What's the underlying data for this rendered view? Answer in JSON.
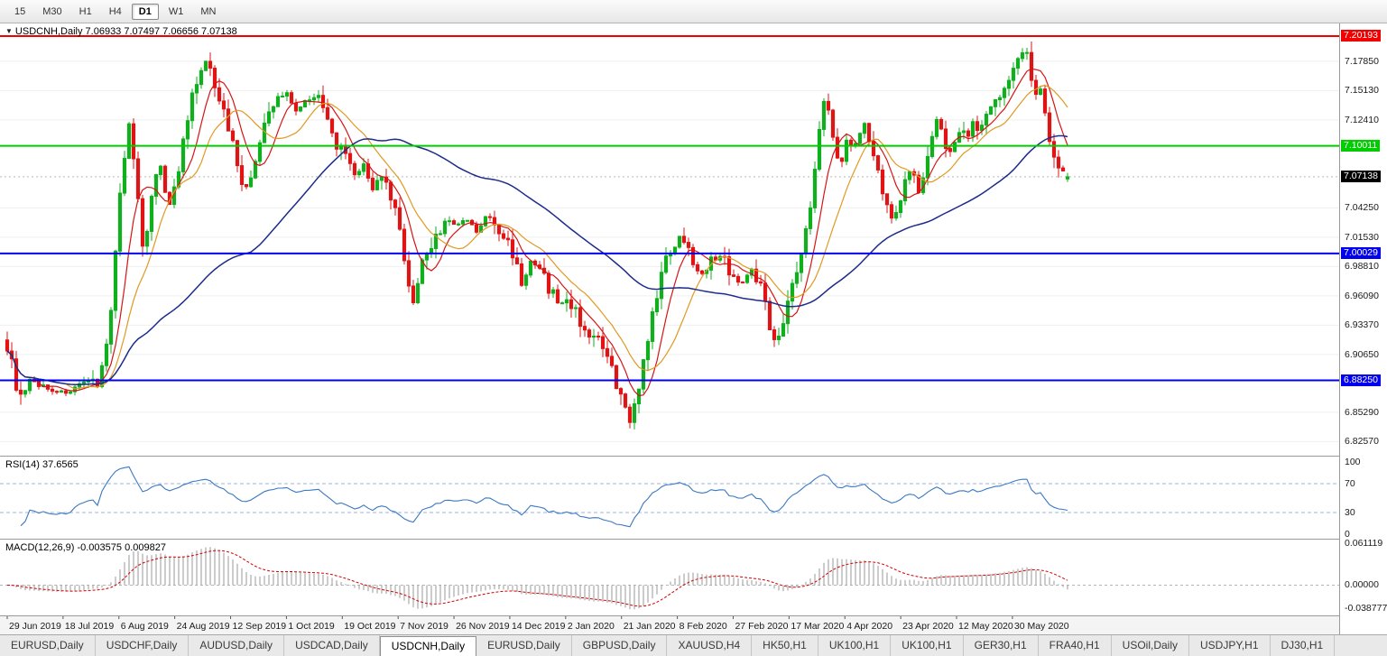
{
  "toolbar": {
    "timeframes": [
      "15",
      "M30",
      "H1",
      "H4",
      "D1",
      "W1",
      "MN"
    ],
    "active_index": 4
  },
  "chart_data": {
    "main": {
      "type": "candlestick",
      "symbol": "USDCNH",
      "timeframe": "Daily",
      "info_text": "USDCNH,Daily 7.06933 7.07497 7.06656 7.07138",
      "current": {
        "open": 7.06933,
        "high": 7.07497,
        "low": 7.06656,
        "close": 7.07138
      },
      "up_color": "#0faf1e",
      "down_color": "#e01414",
      "price_axis": {
        "min": 6.8118,
        "max": 7.2136,
        "labels": [
          {
            "text": "7.17850",
            "price": 7.1785
          },
          {
            "text": "7.15130",
            "price": 7.1513
          },
          {
            "text": "7.12410",
            "price": 7.1241
          },
          {
            "text": "7.04250",
            "price": 7.0425
          },
          {
            "text": "7.01530",
            "price": 7.0153
          },
          {
            "text": "6.98810",
            "price": 6.9881
          },
          {
            "text": "6.96090",
            "price": 6.9609
          },
          {
            "text": "6.93370",
            "price": 6.9337
          },
          {
            "text": "6.90650",
            "price": 6.9065
          },
          {
            "text": "6.85290",
            "price": 6.8529
          },
          {
            "text": "6.82570",
            "price": 6.8257
          }
        ]
      },
      "hlines": [
        {
          "price": 7.20193,
          "label": "7.20193",
          "color": "#f20000",
          "name": "resistance-line"
        },
        {
          "price": 7.10011,
          "label": "7.10011",
          "color": "#00cc00",
          "name": "support-green-line"
        },
        {
          "price": 7.00029,
          "label": "7.00029",
          "color": "#0000ee",
          "name": "level-7000-line"
        },
        {
          "price": 6.8825,
          "label": "6.88250",
          "color": "#0000ee",
          "name": "level-6882-line"
        }
      ],
      "current_price_tag": {
        "price": 7.07138,
        "text": "7.07138",
        "color": "#000000"
      },
      "moving_averages": [
        {
          "period": 7,
          "color": "#d51515"
        },
        {
          "period": 14,
          "color": "#e09a22"
        },
        {
          "period": 55,
          "color": "#1c2b8c"
        }
      ],
      "close_path_anchors": [
        [
          0.0,
          6.916
        ],
        [
          0.006,
          6.888
        ],
        [
          0.013,
          6.864
        ],
        [
          0.022,
          6.882
        ],
        [
          0.035,
          6.876
        ],
        [
          0.053,
          6.871
        ],
        [
          0.07,
          6.877
        ],
        [
          0.085,
          6.883
        ],
        [
          0.096,
          6.925
        ],
        [
          0.104,
          7.04
        ],
        [
          0.11,
          7.088
        ],
        [
          0.115,
          7.122
        ],
        [
          0.121,
          7.06
        ],
        [
          0.128,
          7.006
        ],
        [
          0.136,
          7.052
        ],
        [
          0.143,
          7.09
        ],
        [
          0.151,
          7.042
        ],
        [
          0.158,
          7.062
        ],
        [
          0.166,
          7.105
        ],
        [
          0.174,
          7.146
        ],
        [
          0.182,
          7.168
        ],
        [
          0.189,
          7.182
        ],
        [
          0.196,
          7.156
        ],
        [
          0.204,
          7.128
        ],
        [
          0.211,
          7.108
        ],
        [
          0.219,
          7.072
        ],
        [
          0.226,
          7.058
        ],
        [
          0.234,
          7.092
        ],
        [
          0.243,
          7.122
        ],
        [
          0.252,
          7.142
        ],
        [
          0.263,
          7.15
        ],
        [
          0.272,
          7.132
        ],
        [
          0.282,
          7.144
        ],
        [
          0.291,
          7.15
        ],
        [
          0.3,
          7.122
        ],
        [
          0.308,
          7.104
        ],
        [
          0.316,
          7.092
        ],
        [
          0.325,
          7.072
        ],
        [
          0.334,
          7.082
        ],
        [
          0.344,
          7.062
        ],
        [
          0.354,
          7.068
        ],
        [
          0.364,
          7.04
        ],
        [
          0.373,
          6.998
        ],
        [
          0.381,
          6.952
        ],
        [
          0.39,
          6.992
        ],
        [
          0.4,
          7.012
        ],
        [
          0.411,
          7.03
        ],
        [
          0.422,
          7.026
        ],
        [
          0.432,
          7.032
        ],
        [
          0.441,
          7.02
        ],
        [
          0.451,
          7.036
        ],
        [
          0.461,
          7.022
        ],
        [
          0.475,
          7.002
        ],
        [
          0.483,
          6.972
        ],
        [
          0.492,
          6.992
        ],
        [
          0.502,
          6.982
        ],
        [
          0.512,
          6.962
        ],
        [
          0.521,
          6.952
        ],
        [
          0.527,
          6.96
        ],
        [
          0.536,
          6.94
        ],
        [
          0.546,
          6.928
        ],
        [
          0.556,
          6.916
        ],
        [
          0.566,
          6.898
        ],
        [
          0.573,
          6.872
        ],
        [
          0.58,
          6.858
        ],
        [
          0.586,
          6.846
        ],
        [
          0.592,
          6.872
        ],
        [
          0.601,
          6.912
        ],
        [
          0.611,
          6.968
        ],
        [
          0.621,
          7.0
        ],
        [
          0.632,
          7.018
        ],
        [
          0.641,
          7.0
        ],
        [
          0.651,
          6.982
        ],
        [
          0.661,
          6.992
        ],
        [
          0.671,
          7.0
        ],
        [
          0.68,
          6.982
        ],
        [
          0.69,
          6.97
        ],
        [
          0.7,
          6.99
        ],
        [
          0.71,
          6.962
        ],
        [
          0.719,
          6.922
        ],
        [
          0.728,
          6.932
        ],
        [
          0.738,
          6.972
        ],
        [
          0.747,
          7.002
        ],
        [
          0.756,
          7.052
        ],
        [
          0.763,
          7.122
        ],
        [
          0.769,
          7.158
        ],
        [
          0.776,
          7.102
        ],
        [
          0.782,
          7.082
        ],
        [
          0.788,
          7.108
        ],
        [
          0.794,
          7.092
        ],
        [
          0.8,
          7.112
        ],
        [
          0.806,
          7.12
        ],
        [
          0.812,
          7.098
        ],
        [
          0.818,
          7.078
        ],
        [
          0.825,
          7.048
        ],
        [
          0.832,
          7.028
        ],
        [
          0.843,
          7.062
        ],
        [
          0.85,
          7.082
        ],
        [
          0.856,
          7.062
        ],
        [
          0.862,
          7.082
        ],
        [
          0.868,
          7.102
        ],
        [
          0.873,
          7.128
        ],
        [
          0.878,
          7.112
        ],
        [
          0.884,
          7.092
        ],
        [
          0.89,
          7.102
        ],
        [
          0.896,
          7.112
        ],
        [
          0.902,
          7.104
        ],
        [
          0.908,
          7.124
        ],
        [
          0.914,
          7.112
        ],
        [
          0.92,
          7.132
        ],
        [
          0.926,
          7.148
        ],
        [
          0.932,
          7.14
        ],
        [
          0.938,
          7.156
        ],
        [
          0.944,
          7.17
        ],
        [
          0.95,
          7.184
        ],
        [
          0.955,
          7.193
        ],
        [
          0.96,
          7.178
        ],
        [
          0.965,
          7.15
        ],
        [
          0.97,
          7.156
        ],
        [
          0.975,
          7.13
        ],
        [
          0.98,
          7.105
        ],
        [
          0.986,
          7.082
        ],
        [
          0.991,
          7.078
        ],
        [
          0.996,
          7.0714
        ]
      ]
    },
    "rsi": {
      "type": "line",
      "label": "RSI(14) 37.6565",
      "period": 14,
      "current": 37.6565,
      "color": "#3a78c3",
      "levels": [
        70,
        30
      ],
      "axis_labels": [
        {
          "text": "100",
          "value": 100
        },
        {
          "text": "70",
          "value": 70
        },
        {
          "text": "30",
          "value": 30
        },
        {
          "text": "0",
          "value": 0
        }
      ]
    },
    "macd": {
      "type": "histogram+line",
      "label": "MACD(12,26,9) -0.003575 0.009827",
      "fast": 12,
      "slow": 26,
      "signal": 9,
      "current": {
        "macd": -0.003575,
        "signal": 0.009827
      },
      "hist_color": "#9a9a9a",
      "signal_color": "#d40000",
      "range": {
        "min": -0.038777,
        "max": 0.061119
      },
      "axis_labels": [
        {
          "text": "0.061119",
          "value": 0.061119
        },
        {
          "text": "0.00000",
          "value": 0
        },
        {
          "text": "-0.038777",
          "value": -0.038777
        }
      ]
    },
    "dates": [
      "29 Jun 2019",
      "18 Jul 2019",
      "6 Aug 2019",
      "24 Aug 2019",
      "12 Sep 2019",
      "1 Oct 2019",
      "19 Oct 2019",
      "7 Nov 2019",
      "26 Nov 2019",
      "14 Dec 2019",
      "2 Jan 2020",
      "21 Jan 2020",
      "8 Feb 2020",
      "27 Feb 2020",
      "17 Mar 2020",
      "4 Apr 2020",
      "23 Apr 2020",
      "12 May 2020",
      "30 May 2020"
    ]
  },
  "tabbar": {
    "active_index": 4,
    "tabs": [
      "EURUSD,Daily",
      "USDCHF,Daily",
      "AUDUSD,Daily",
      "USDCAD,Daily",
      "USDCNH,Daily",
      "EURUSD,Daily",
      "GBPUSD,Daily",
      "XAUUSD,H4",
      "HK50,H1",
      "UK100,H1",
      "UK100,H1",
      "GER30,H1",
      "FRA40,H1",
      "USOil,Daily",
      "USDJPY,H1",
      "DJ30,H1"
    ]
  }
}
